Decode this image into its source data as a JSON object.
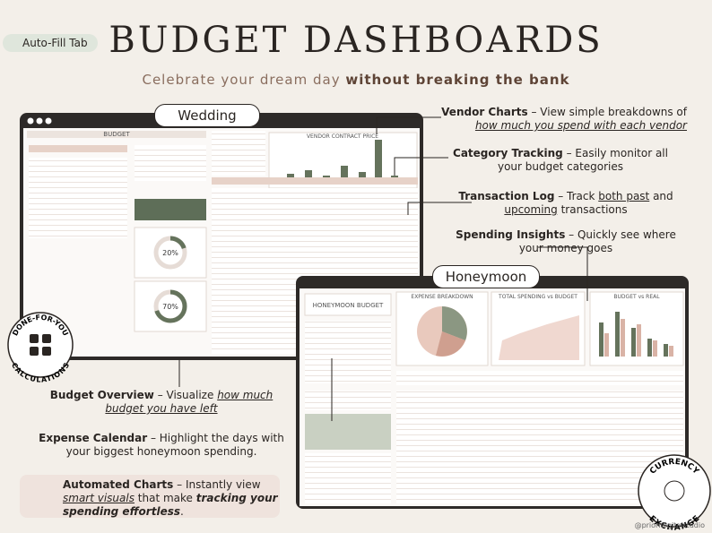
{
  "badge": "Auto-Fill Tab",
  "header": {
    "title": "BUDGET DASHBOARDS",
    "subtitle_plain": "Celebrate your dream day",
    "subtitle_bold": "without breaking the bank"
  },
  "tabs": {
    "wedding": "Wedding",
    "honeymoon": "Honeymoon"
  },
  "features": [
    {
      "segments": [
        {
          "text": "Vendor Charts",
          "style": "bold"
        },
        {
          "text": " – View simple breakdowns of ",
          "style": "plain"
        },
        {
          "text": "how much you spend with each vendor",
          "style": "italic-underline"
        }
      ]
    },
    {
      "segments": [
        {
          "text": "Category Tracking",
          "style": "bold"
        },
        {
          "text": " – Easily monitor all your budget categories",
          "style": "plain"
        }
      ]
    },
    {
      "segments": [
        {
          "text": "Transaction Log",
          "style": "bold"
        },
        {
          "text": " – Track ",
          "style": "plain"
        },
        {
          "text": "both past",
          "style": "underline"
        },
        {
          "text": " and ",
          "style": "plain"
        },
        {
          "text": "upcoming",
          "style": "underline"
        },
        {
          "text": " transactions",
          "style": "plain"
        }
      ]
    },
    {
      "segments": [
        {
          "text": "Spending Insights",
          "style": "bold"
        },
        {
          "text": " – Quickly see where your money goes",
          "style": "plain"
        }
      ]
    },
    {
      "segments": [
        {
          "text": "Budget Overview",
          "style": "bold"
        },
        {
          "text": " – Visualize ",
          "style": "plain"
        },
        {
          "text": "how much budget you have left",
          "style": "italic-underline"
        }
      ]
    },
    {
      "segments": [
        {
          "text": "Expense Calendar",
          "style": "bold"
        },
        {
          "text": " – Highlight the days with your biggest honeymoon spending.",
          "style": "plain"
        }
      ]
    },
    {
      "segments": [
        {
          "text": "Automated Charts",
          "style": "bold"
        },
        {
          "text": " – Instantly view ",
          "style": "plain"
        },
        {
          "text": "smart visuals",
          "style": "italic-underline"
        },
        {
          "text": " that make ",
          "style": "plain"
        },
        {
          "text": "tracking your spending effortless",
          "style": "bold-italic"
        },
        {
          "text": ".",
          "style": "plain"
        }
      ]
    }
  ],
  "seals": {
    "left_top": "DONE-FOR-YOU",
    "left_bottom": "CALCULATIONS",
    "right_top": "CURRENCY",
    "right_bottom": "EXCHANGE"
  },
  "credit": "@prioridigitalstudio",
  "wedding_screen": {
    "title": "BUDGET",
    "chart_title": "VENDOR CONTRACT PRICE",
    "donuts": [
      {
        "value": 20,
        "label": "20%"
      },
      {
        "value": 70,
        "label": "70%"
      }
    ]
  },
  "honeymoon_screen": {
    "title": "HONEYMOON BUDGET",
    "panels": [
      "EXPENSE BREAKDOWN",
      "TOTAL SPENDING vs BUDGET",
      "BUDGET vs REAL"
    ]
  }
}
